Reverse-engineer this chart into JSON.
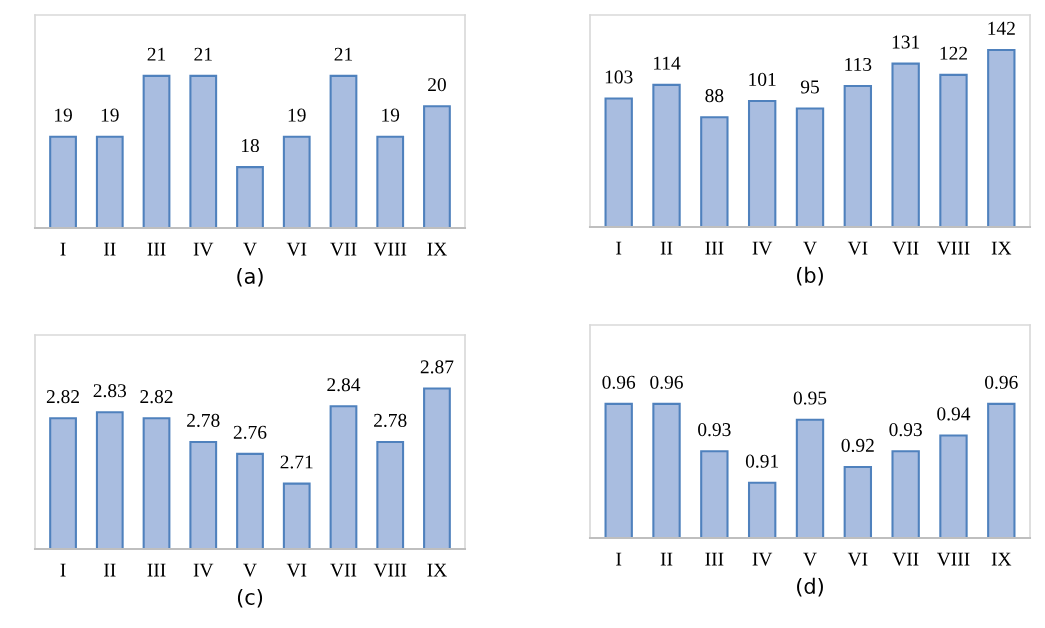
{
  "chart_data": [
    {
      "type": "bar",
      "xlabel": "(a)",
      "categories": [
        "I",
        "II",
        "III",
        "IV",
        "V",
        "VI",
        "VII",
        "VIII",
        "IX"
      ],
      "values": [
        19,
        19,
        21,
        21,
        18,
        19,
        21,
        19,
        20
      ],
      "color": "#a9bde0",
      "ylim": [
        16,
        23
      ],
      "tick_labels": "x",
      "data_labels": true,
      "grid": false,
      "legend": false
    },
    {
      "type": "bar",
      "xlabel": "(b)",
      "categories": [
        "I",
        "II",
        "III",
        "IV",
        "V",
        "VI",
        "VII",
        "VIII",
        "IX"
      ],
      "values": [
        103,
        114,
        88,
        101,
        95,
        113,
        131,
        122,
        142
      ],
      "color": "#a9bde0",
      "ylim": [
        0,
        170
      ],
      "tick_labels": "x",
      "data_labels": true,
      "grid": false,
      "legend": false
    },
    {
      "type": "bar",
      "xlabel": "(c)",
      "categories": [
        "I",
        "II",
        "III",
        "IV",
        "V",
        "VI",
        "VII",
        "VIII",
        "IX"
      ],
      "values": [
        2.82,
        2.83,
        2.82,
        2.78,
        2.76,
        2.71,
        2.84,
        2.78,
        2.87
      ],
      "color": "#a9bde0",
      "ylim": [
        2.6,
        2.96
      ],
      "tick_labels": "x",
      "data_labels": true,
      "grid": false,
      "legend": false
    },
    {
      "type": "bar",
      "xlabel": "(d)",
      "categories": [
        "I",
        "II",
        "III",
        "IV",
        "V",
        "VI",
        "VII",
        "VIII",
        "IX"
      ],
      "values": [
        0.96,
        0.96,
        0.93,
        0.91,
        0.95,
        0.92,
        0.93,
        0.94,
        0.96
      ],
      "color": "#a9bde0",
      "ylim": [
        0.875,
        1.01
      ],
      "tick_labels": "x",
      "data_labels": true,
      "grid": false,
      "legend": false
    }
  ]
}
